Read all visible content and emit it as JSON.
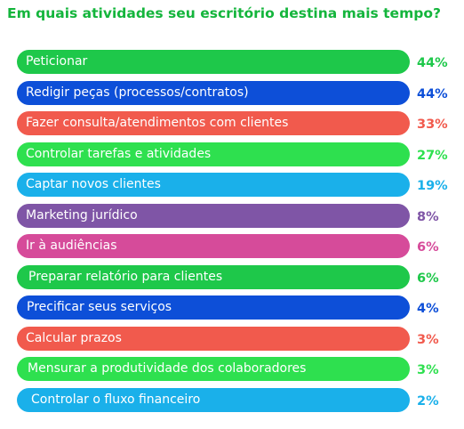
{
  "chart_data": {
    "type": "bar",
    "orientation": "horizontal",
    "title": "Em quais atividades seu escritório destina mais tempo?",
    "categories": [
      "Peticionar",
      "Redigir peças (processos/contratos)",
      "Fazer consulta/atendimentos com clientes",
      "Controlar tarefas e atividades",
      "Captar novos clientes",
      "Marketing jurídico",
      "Ir à audiências",
      "Preparar relatório para clientes",
      "Precificar seus serviços",
      "Calcular prazos",
      "Mensurar a produtividade dos colaboradores",
      "Controlar o fluxo financeiro"
    ],
    "values": [
      44,
      44,
      33,
      27,
      19,
      8,
      6,
      6,
      4,
      3,
      3,
      2
    ],
    "value_labels": [
      "44%",
      "44%",
      "33%",
      "27%",
      "19%",
      "8%",
      "6%",
      "6%",
      "4%",
      "3%",
      "3%",
      "2%"
    ],
    "unit": "%",
    "colors": [
      "#1ec84a",
      "#0d4fd8",
      "#f15a4d",
      "#2ee04f",
      "#1ab0ea",
      "#7f55a6",
      "#d64b9a",
      "#1ec84a",
      "#0d4fd8",
      "#f15a4d",
      "#2ee04f",
      "#1ab0ea"
    ],
    "title_color": "#14b53c",
    "grid": false,
    "legend": "none"
  }
}
